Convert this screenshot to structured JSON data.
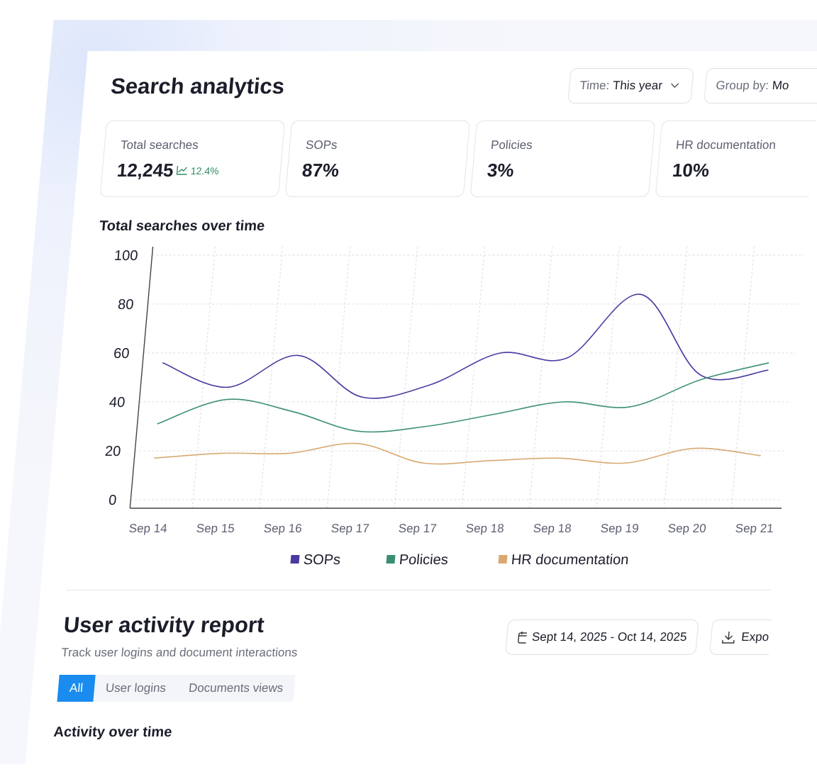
{
  "header": {
    "title": "Search analytics",
    "filters": [
      {
        "label": "Time:",
        "value": "This year"
      },
      {
        "label": "Group by:",
        "value": "Mo"
      }
    ]
  },
  "stats": [
    {
      "label": "Total searches",
      "value": "12,245",
      "change": "12.4%"
    },
    {
      "label": "SOPs",
      "value": "87%"
    },
    {
      "label": "Policies",
      "value": "3%"
    },
    {
      "label": "HR documentation",
      "value": "10%"
    }
  ],
  "chart_data": {
    "type": "line",
    "title": "Total searches over time",
    "categories": [
      "Sep 14",
      "Sep 15",
      "Sep 16",
      "Sep 17",
      "Sep 17",
      "Sep 18",
      "Sep 18",
      "Sep 19",
      "Sep 20",
      "Sep 21"
    ],
    "series": [
      {
        "name": "SOPs",
        "color": "#4a3aa0",
        "values": [
          56,
          46,
          59,
          42,
          47,
          60,
          58,
          84,
          51,
          53
        ]
      },
      {
        "name": "Policies",
        "color": "#3a8f73",
        "values": [
          31,
          41,
          36,
          28,
          30,
          35,
          40,
          38,
          49,
          56
        ]
      },
      {
        "name": "HR documentation",
        "color": "#d9a870",
        "values": [
          17,
          19,
          19,
          23,
          15,
          16,
          17,
          15,
          21,
          18
        ]
      }
    ],
    "ylim": [
      0,
      100
    ],
    "yticks": [
      0,
      20,
      40,
      60,
      80,
      100
    ],
    "grid": true,
    "legend": "bottom"
  },
  "activity": {
    "title": "User activity report",
    "subtitle": "Track user logins and document interactions",
    "date_range": "Sept 14, 2025 - Oct 14, 2025",
    "export": "Expo",
    "tabs": [
      "All",
      "User logins",
      "Documents views"
    ],
    "active_tab": 0,
    "section_title": "Activity over time"
  }
}
